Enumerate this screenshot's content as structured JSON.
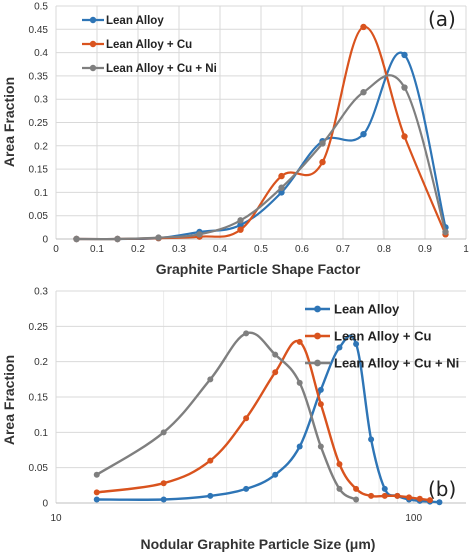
{
  "colors": {
    "blue": "#2e75b6",
    "orange": "#d9531e",
    "gray": "#7f7f7f"
  },
  "chart_data": [
    {
      "type": "line",
      "panel_label": "(a)",
      "xlabel": "Graphite Particle Shape Factor",
      "ylabel": "Area Fraction",
      "xlim": [
        0,
        1
      ],
      "ylim": [
        0,
        0.5
      ],
      "x_ticks": [
        "0",
        "0.1",
        "0.2",
        "0.3",
        "0.4",
        "0.5",
        "0.6",
        "0.7",
        "0.8",
        "0.9",
        "1"
      ],
      "y_ticks": [
        "0",
        "0.05",
        "0.1",
        "0.15",
        "0.2",
        "0.25",
        "0.3",
        "0.35",
        "0.4",
        "0.45",
        "0.5"
      ],
      "grid": true,
      "legend_position": "top-left",
      "series": [
        {
          "name": "Lean Alloy",
          "color": "#2e75b6",
          "x": [
            0.05,
            0.15,
            0.25,
            0.35,
            0.45,
            0.55,
            0.65,
            0.75,
            0.85,
            0.95
          ],
          "y": [
            0,
            0,
            0.002,
            0.015,
            0.03,
            0.1,
            0.21,
            0.225,
            0.395,
            0.025
          ]
        },
        {
          "name": "Lean Alloy + Cu",
          "color": "#d9531e",
          "x": [
            0.05,
            0.15,
            0.25,
            0.35,
            0.45,
            0.55,
            0.65,
            0.75,
            0.85,
            0.95
          ],
          "y": [
            0,
            0,
            0.002,
            0.005,
            0.02,
            0.135,
            0.165,
            0.455,
            0.22,
            0.01
          ]
        },
        {
          "name": "Lean Alloy + Cu + Ni",
          "color": "#7f7f7f",
          "x": [
            0.05,
            0.15,
            0.25,
            0.35,
            0.45,
            0.55,
            0.65,
            0.75,
            0.85,
            0.95
          ],
          "y": [
            0,
            0,
            0.003,
            0.01,
            0.04,
            0.11,
            0.205,
            0.315,
            0.325,
            0.015
          ]
        }
      ]
    },
    {
      "type": "line",
      "panel_label": "(b)",
      "xlabel": "Nodular Graphite Particle Size (μm)",
      "ylabel": "Area Fraction",
      "xscale": "log",
      "xlim": [
        10,
        140
      ],
      "ylim": [
        0,
        0.3
      ],
      "x_ticks": [
        "10",
        "100"
      ],
      "y_ticks": [
        "0",
        "0.05",
        "0.1",
        "0.15",
        "0.2",
        "0.25",
        "0.3"
      ],
      "grid": true,
      "legend_position": "top-right",
      "series": [
        {
          "name": "Lean Alloy",
          "color": "#2e75b6",
          "x": [
            13,
            20,
            27,
            34,
            41,
            48,
            55,
            62,
            69,
            76,
            83,
            90,
            97,
            104,
            111,
            118
          ],
          "y": [
            0.005,
            0.005,
            0.01,
            0.02,
            0.04,
            0.08,
            0.16,
            0.22,
            0.225,
            0.09,
            0.02,
            0.01,
            0.005,
            0.003,
            0.002,
            0.001
          ]
        },
        {
          "name": "Lean Alloy + Cu",
          "color": "#d9531e",
          "x": [
            13,
            20,
            27,
            34,
            41,
            48,
            55,
            62,
            69,
            76,
            83,
            90,
            97,
            104,
            111
          ],
          "y": [
            0.015,
            0.028,
            0.06,
            0.12,
            0.185,
            0.228,
            0.14,
            0.055,
            0.02,
            0.01,
            0.01,
            0.01,
            0.008,
            0.006,
            0.004
          ]
        },
        {
          "name": "Lean Alloy + Cu + Ni",
          "color": "#7f7f7f",
          "x": [
            13,
            20,
            27,
            34,
            41,
            48,
            55,
            62,
            69
          ],
          "y": [
            0.04,
            0.1,
            0.175,
            0.24,
            0.21,
            0.17,
            0.08,
            0.02,
            0.005
          ]
        }
      ]
    }
  ]
}
